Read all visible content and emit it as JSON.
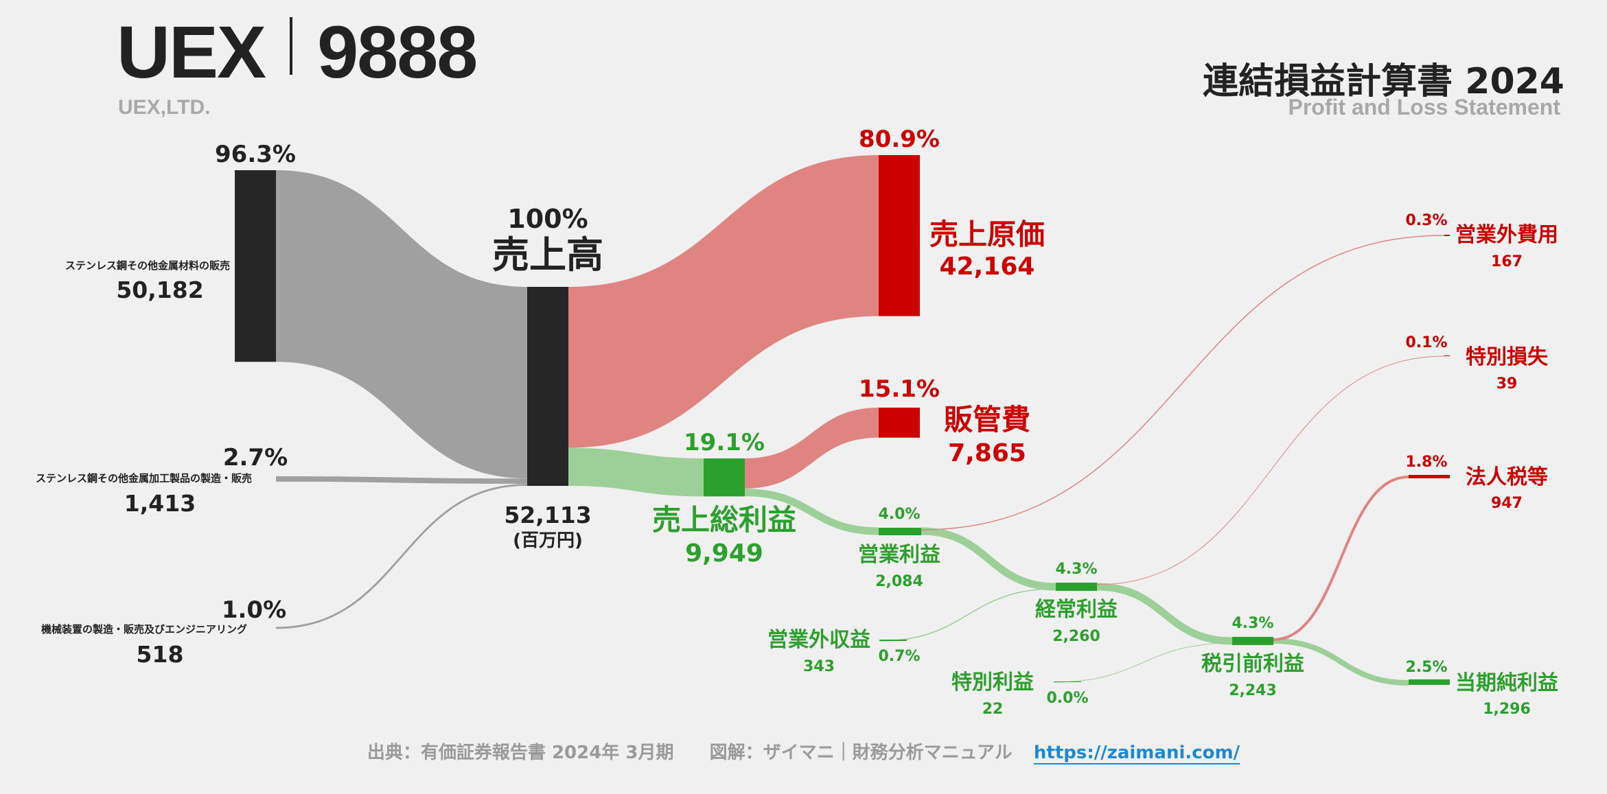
{
  "header": {
    "company": "UEX",
    "code": "9888",
    "company_en": "UEX,LTD.",
    "title": "連結損益計算書 2024",
    "subtitle": "Profit and Loss Statement"
  },
  "footer": {
    "source": "出典：有価証券報告書 2024年 3月期",
    "credit": "図解：ザイマニ｜財務分析マニュアル",
    "url": "https://zaimani.com/"
  },
  "colors": {
    "revenue": "#262626",
    "revenue_flow": "#a0a0a0",
    "cost": "#cc0000",
    "cost_flow": "#e08482",
    "profit": "#2ca02c",
    "profit_flow": "#9dcf98",
    "dark_text": "#222222"
  },
  "chart_data": {
    "type": "sankey",
    "unit": "(百万円)",
    "title": "連結損益計算書 2024",
    "nodes": [
      {
        "id": "seg1",
        "label": "ステンレス鋼その他金属材料の販売",
        "value": 50182,
        "value_label": "50,182",
        "pct": "96.3%",
        "kind": "segment"
      },
      {
        "id": "seg2",
        "label": "ステンレス鋼その他金属加工製品の製造・販売",
        "value": 1413,
        "value_label": "1,413",
        "pct": "2.7%",
        "kind": "segment"
      },
      {
        "id": "seg3",
        "label": "機械装置の製造・販売及びエンジニアリング",
        "value": 518,
        "value_label": "518",
        "pct": "1.0%",
        "kind": "segment"
      },
      {
        "id": "rev",
        "label": "売上高",
        "value": 52113,
        "value_label": "52,113",
        "pct": "100%",
        "kind": "revenue"
      },
      {
        "id": "cogs",
        "label": "売上原価",
        "value": 42164,
        "value_label": "42,164",
        "pct": "80.9%",
        "kind": "cost"
      },
      {
        "id": "gp",
        "label": "売上総利益",
        "value": 9949,
        "value_label": "9,949",
        "pct": "19.1%",
        "kind": "profit"
      },
      {
        "id": "sga",
        "label": "販管費",
        "value": 7865,
        "value_label": "7,865",
        "pct": "15.1%",
        "kind": "cost"
      },
      {
        "id": "op",
        "label": "営業利益",
        "value": 2084,
        "value_label": "2,084",
        "pct": "4.0%",
        "kind": "profit"
      },
      {
        "id": "nonopinc",
        "label": "営業外収益",
        "value": 343,
        "value_label": "343",
        "pct": "0.7%",
        "kind": "profit"
      },
      {
        "id": "nonopexp",
        "label": "営業外費用",
        "value": 167,
        "value_label": "167",
        "pct": "0.3%",
        "kind": "cost"
      },
      {
        "id": "ord",
        "label": "経常利益",
        "value": 2260,
        "value_label": "2,260",
        "pct": "4.3%",
        "kind": "profit"
      },
      {
        "id": "extinc",
        "label": "特別利益",
        "value": 22,
        "value_label": "22",
        "pct": "0.0%",
        "kind": "profit"
      },
      {
        "id": "extloss",
        "label": "特別損失",
        "value": 39,
        "value_label": "39",
        "pct": "0.1%",
        "kind": "cost"
      },
      {
        "id": "pretax",
        "label": "税引前利益",
        "value": 2243,
        "value_label": "2,243",
        "pct": "4.3%",
        "kind": "profit"
      },
      {
        "id": "tax",
        "label": "法人税等",
        "value": 947,
        "value_label": "947",
        "pct": "1.8%",
        "kind": "cost"
      },
      {
        "id": "net",
        "label": "当期純利益",
        "value": 1296,
        "value_label": "1,296",
        "pct": "2.5%",
        "kind": "profit"
      }
    ],
    "links": [
      {
        "source": "seg1",
        "target": "rev",
        "value": 50182
      },
      {
        "source": "seg2",
        "target": "rev",
        "value": 1413
      },
      {
        "source": "seg3",
        "target": "rev",
        "value": 518
      },
      {
        "source": "rev",
        "target": "cogs",
        "value": 42164
      },
      {
        "source": "rev",
        "target": "gp",
        "value": 9949
      },
      {
        "source": "gp",
        "target": "sga",
        "value": 7865
      },
      {
        "source": "gp",
        "target": "op",
        "value": 2084
      },
      {
        "source": "op",
        "target": "ord",
        "value": 2084
      },
      {
        "source": "op",
        "target": "nonopexp",
        "value": 167
      },
      {
        "source": "nonopinc",
        "target": "ord",
        "value": 343
      },
      {
        "source": "ord",
        "target": "pretax",
        "value": 2260
      },
      {
        "source": "ord",
        "target": "extloss",
        "value": 39
      },
      {
        "source": "extinc",
        "target": "pretax",
        "value": 22
      },
      {
        "source": "pretax",
        "target": "tax",
        "value": 947
      },
      {
        "source": "pretax",
        "target": "net",
        "value": 1296
      }
    ]
  }
}
